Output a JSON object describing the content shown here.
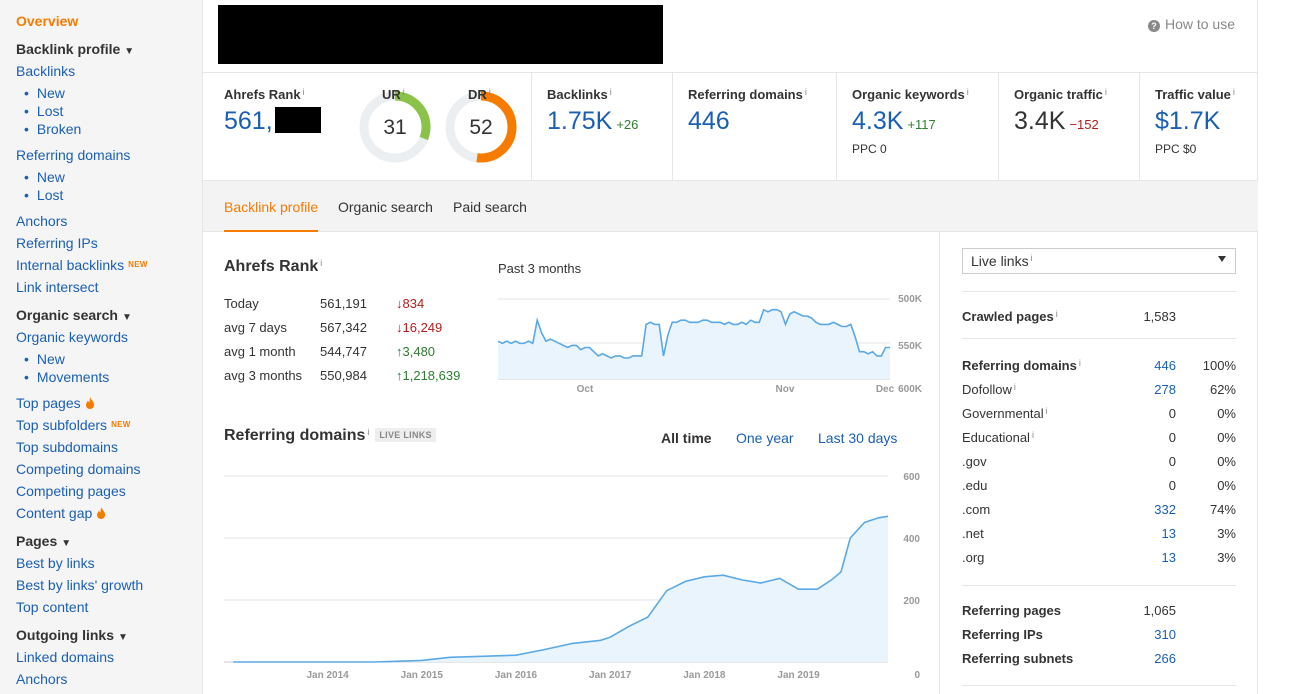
{
  "sidebar": {
    "overview": "Overview",
    "backlink_profile": "Backlink profile",
    "backlinks": "Backlinks",
    "backlinks_new": "New",
    "backlinks_lost": "Lost",
    "backlinks_broken": "Broken",
    "referring_domains": "Referring domains",
    "rd_new": "New",
    "rd_lost": "Lost",
    "anchors": "Anchors",
    "referring_ips": "Referring IPs",
    "internal_backlinks": "Internal backlinks",
    "new_badge": "NEW",
    "link_intersect": "Link intersect",
    "organic_search": "Organic search",
    "organic_keywords": "Organic keywords",
    "ok_new": "New",
    "ok_movements": "Movements",
    "top_pages": "Top pages",
    "top_subfolders": "Top subfolders",
    "top_subdomains": "Top subdomains",
    "competing_domains": "Competing domains",
    "competing_pages": "Competing pages",
    "content_gap": "Content gap",
    "pages": "Pages",
    "best_by_links": "Best by links",
    "best_by_links_growth": "Best by links' growth",
    "top_content": "Top content",
    "outgoing_links": "Outgoing links",
    "linked_domains": "Linked domains",
    "out_anchors": "Anchors"
  },
  "header": {
    "how_to_use": "How to use",
    "help_icon_glyph": "?"
  },
  "metrics": {
    "ahrefs_rank": {
      "label": "Ahrefs Rank",
      "value": "561,"
    },
    "ur": {
      "label": "UR",
      "value": "31",
      "score": 31,
      "color": "#8bc34a"
    },
    "dr": {
      "label": "DR",
      "value": "52",
      "score": 52,
      "color": "#f57c00"
    },
    "backlinks": {
      "label": "Backlinks",
      "value": "1.75K",
      "delta": "+26"
    },
    "referring_domains": {
      "label": "Referring domains",
      "value": "446"
    },
    "organic_keywords": {
      "label": "Organic keywords",
      "value": "4.3K",
      "delta": "+117",
      "sub": "PPC 0"
    },
    "organic_traffic": {
      "label": "Organic traffic",
      "value": "3.4K",
      "delta": "−152"
    },
    "traffic_value": {
      "label": "Traffic value",
      "value": "$1.7K",
      "sub": "PPC $0"
    },
    "info_glyph": "i"
  },
  "tabs": [
    "Backlink profile",
    "Organic search",
    "Paid search"
  ],
  "rank_panel": {
    "title": "Ahrefs Rank",
    "rows": [
      {
        "period": "Today",
        "value": "561,191",
        "change": "↓834",
        "dir": "down"
      },
      {
        "period": "avg 7 days",
        "value": "567,342",
        "change": "↓16,249",
        "dir": "down"
      },
      {
        "period": "avg 1 month",
        "value": "544,747",
        "change": "↑3,480",
        "dir": "up"
      },
      {
        "period": "avg 3 months",
        "value": "550,984",
        "change": "↑1,218,639",
        "dir": "up"
      }
    ],
    "chart_title": "Past 3 months"
  },
  "rd_panel": {
    "title": "Referring domains",
    "badge": "LIVE LINKS",
    "ranges": [
      "All time",
      "One year",
      "Last 30 days"
    ]
  },
  "right_panel": {
    "select_value": "Live links",
    "crawled_pages": {
      "label": "Crawled pages",
      "value": "1,583"
    },
    "rows": [
      {
        "label": "Referring domains",
        "value": "446",
        "pct": "100%",
        "bold": true,
        "blue": true
      },
      {
        "label": "Dofollow",
        "value": "278",
        "pct": "62%",
        "blue": true,
        "info": true
      },
      {
        "label": "Governmental",
        "value": "0",
        "pct": "0%",
        "info": true
      },
      {
        "label": "Educational",
        "value": "0",
        "pct": "0%",
        "info": true
      },
      {
        "label": ".gov",
        "value": "0",
        "pct": "0%"
      },
      {
        "label": ".edu",
        "value": "0",
        "pct": "0%"
      },
      {
        "label": ".com",
        "value": "332",
        "pct": "74%",
        "blue": true
      },
      {
        "label": ".net",
        "value": "13",
        "pct": "3%",
        "blue": true
      },
      {
        "label": ".org",
        "value": "13",
        "pct": "3%",
        "blue": true
      }
    ],
    "bottom": [
      {
        "label": "Referring pages",
        "value": "1,065"
      },
      {
        "label": "Referring IPs",
        "value": "310",
        "blue": true
      },
      {
        "label": "Referring subnets",
        "value": "266",
        "blue": true
      }
    ]
  },
  "chart_data": [
    {
      "type": "area",
      "ylabel": "",
      "ylim": [
        530000,
        600000
      ],
      "y_ticks": [
        "500K",
        "550K",
        "600K"
      ],
      "x_ticks": [
        "Oct",
        "Nov",
        "Dec"
      ],
      "x": [
        0,
        1,
        2,
        3,
        4,
        5,
        6,
        7,
        8,
        9,
        10,
        11,
        12,
        13,
        14,
        15,
        16,
        17,
        18,
        19,
        20,
        21,
        22,
        23,
        24,
        25,
        26,
        27,
        28,
        29,
        30,
        31,
        32,
        33,
        34,
        35,
        36,
        37,
        38,
        39,
        40,
        41,
        42,
        43,
        44,
        45,
        46,
        47,
        48,
        49,
        50,
        51,
        52,
        53,
        54,
        55,
        56,
        57,
        58,
        59,
        60,
        61,
        62,
        63,
        64,
        65,
        66,
        67,
        68,
        69,
        70,
        71,
        72,
        73,
        74,
        75,
        76,
        77,
        78,
        79,
        80,
        81,
        82,
        83,
        84,
        85,
        86,
        87,
        88,
        89,
        90
      ],
      "values": [
        558,
        557,
        558,
        557,
        558,
        557,
        557,
        558,
        557,
        568,
        562,
        558,
        559,
        558,
        557,
        556,
        555,
        556,
        556,
        554,
        555,
        555,
        553,
        551,
        552,
        551,
        550,
        551,
        551,
        550,
        550,
        551,
        551,
        551,
        566,
        567,
        566,
        566,
        551,
        561,
        567,
        567,
        568,
        568,
        567,
        567,
        567,
        568,
        568,
        567,
        567,
        567,
        566,
        567,
        566,
        566,
        567,
        566,
        568,
        567,
        567,
        573,
        572,
        573,
        573,
        572,
        566,
        571,
        572,
        571,
        570,
        570,
        569,
        567,
        566,
        566,
        566,
        567,
        566,
        565,
        565,
        566,
        560,
        553,
        553,
        552,
        553,
        551,
        551,
        555,
        555
      ]
    },
    {
      "type": "area",
      "ylabel": "",
      "ylim": [
        0,
        600
      ],
      "y_ticks": [
        "0",
        "200",
        "400",
        "600"
      ],
      "x_ticks": [
        "Jan 2014",
        "Jan 2015",
        "Jan 2016",
        "Jan 2017",
        "Jan 2018",
        "Jan 2019"
      ],
      "x": [
        2013.0,
        2013.5,
        2014.0,
        2014.5,
        2015.0,
        2015.3,
        2015.6,
        2016.0,
        2016.3,
        2016.6,
        2016.9,
        2017.0,
        2017.2,
        2017.4,
        2017.6,
        2017.8,
        2018.0,
        2018.2,
        2018.4,
        2018.6,
        2018.8,
        2019.0,
        2019.2,
        2019.35,
        2019.45,
        2019.55,
        2019.7,
        2019.85,
        2019.95
      ],
      "values": [
        0,
        0,
        0,
        0,
        5,
        15,
        18,
        22,
        40,
        60,
        70,
        80,
        115,
        145,
        230,
        260,
        275,
        280,
        265,
        255,
        270,
        235,
        235,
        265,
        290,
        400,
        450,
        465,
        470
      ]
    }
  ]
}
